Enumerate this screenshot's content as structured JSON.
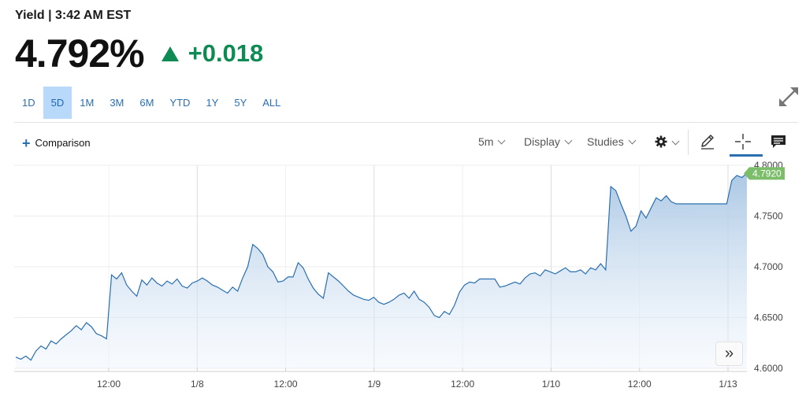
{
  "header": {
    "title": "Yield | 3:42 AM EST"
  },
  "quote": {
    "price": "4.792%",
    "change": "+0.018",
    "direction": "up",
    "up_color": "#0e8a54"
  },
  "ranges": [
    "1D",
    "5D",
    "1M",
    "3M",
    "6M",
    "YTD",
    "1Y",
    "5Y",
    "ALL"
  ],
  "active_range": "5D",
  "toolbar": {
    "comparison_label": "Comparison",
    "interval_label": "5m",
    "display_label": "Display",
    "studies_label": "Studies",
    "icons": [
      "gear-icon",
      "pencil-icon",
      "crosshair-icon",
      "comment-icon"
    ]
  },
  "chart_data": {
    "type": "area",
    "x_ticks": [
      "12:00",
      "1/8",
      "12:00",
      "1/9",
      "12:00",
      "1/10",
      "12:00",
      "1/13"
    ],
    "y_ticks": [
      "4.6000",
      "4.6500",
      "4.7000",
      "4.7500",
      "4.8000"
    ],
    "ylim": [
      4.6,
      4.8
    ],
    "last_value_label": "4.7920",
    "last_value_color": "#7cbd6a",
    "line_color": "#2a6fb0",
    "grid": true,
    "y_axis_side": "right",
    "series": [
      {
        "values": [
          4.611,
          4.609,
          4.612,
          4.608,
          4.617,
          4.622,
          4.619,
          4.627,
          4.624,
          4.629,
          4.633,
          4.637,
          4.642,
          4.638,
          4.645,
          4.641,
          4.634,
          4.632,
          4.629,
          4.692,
          4.688,
          4.694,
          4.682,
          4.676,
          4.671,
          4.687,
          4.682,
          4.689,
          4.684,
          4.681,
          4.686,
          4.683,
          4.688,
          4.681,
          4.679,
          4.684,
          4.686,
          4.689,
          4.686,
          4.682,
          4.68,
          4.677,
          4.674,
          4.68,
          4.676,
          4.689,
          4.7,
          4.722,
          4.718,
          4.712,
          4.7,
          4.695,
          4.685,
          4.686,
          4.69,
          4.69,
          4.704,
          4.699,
          4.688,
          4.679,
          4.673,
          4.669,
          4.694,
          4.69,
          4.686,
          4.681,
          4.676,
          4.672,
          4.67,
          4.668,
          4.667,
          4.67,
          4.665,
          4.663,
          4.665,
          4.668,
          4.672,
          4.674,
          4.669,
          4.676,
          4.668,
          4.665,
          4.66,
          4.652,
          4.65,
          4.656,
          4.653,
          4.662,
          4.675,
          4.682,
          4.685,
          4.684,
          4.688,
          4.688,
          4.688,
          4.688,
          4.68,
          4.681,
          4.683,
          4.685,
          4.683,
          4.689,
          4.693,
          4.694,
          4.691,
          4.697,
          4.695,
          4.693,
          4.696,
          4.699,
          4.695,
          4.695,
          4.697,
          4.693,
          4.699,
          4.697,
          4.703,
          4.697,
          4.779,
          4.775,
          4.762,
          4.75,
          4.735,
          4.74,
          4.755,
          4.748,
          4.758,
          4.768,
          4.765,
          4.77,
          4.764,
          4.762,
          4.762,
          4.762,
          4.762,
          4.762,
          4.762,
          4.762,
          4.762,
          4.762,
          4.762,
          4.762,
          4.785,
          4.79,
          4.788,
          4.792
        ]
      }
    ]
  }
}
